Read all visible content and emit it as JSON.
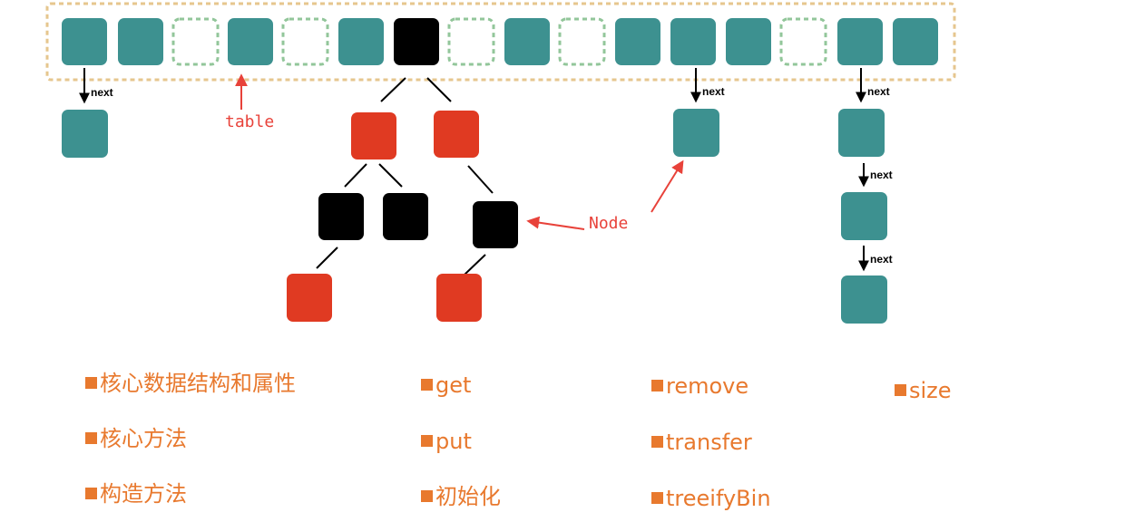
{
  "diagram": {
    "table_label": "table",
    "node_label": "Node",
    "next_label": "next",
    "colors": {
      "bucket": "#3d9190",
      "empty_dash": "#92c69a",
      "red_node": "#e03a22",
      "black_node": "#000000",
      "border_dash": "#e6c68e",
      "arrow_red": "#e8423a",
      "text_orange": "#e8792e"
    }
  },
  "menu": {
    "col1": [
      "核心数据结构和属性",
      "核心方法",
      "构造方法"
    ],
    "col2": [
      "get",
      "put",
      "初始化"
    ],
    "col3": [
      "remove",
      "transfer",
      "treeifyBin"
    ],
    "col4": [
      "size"
    ]
  }
}
